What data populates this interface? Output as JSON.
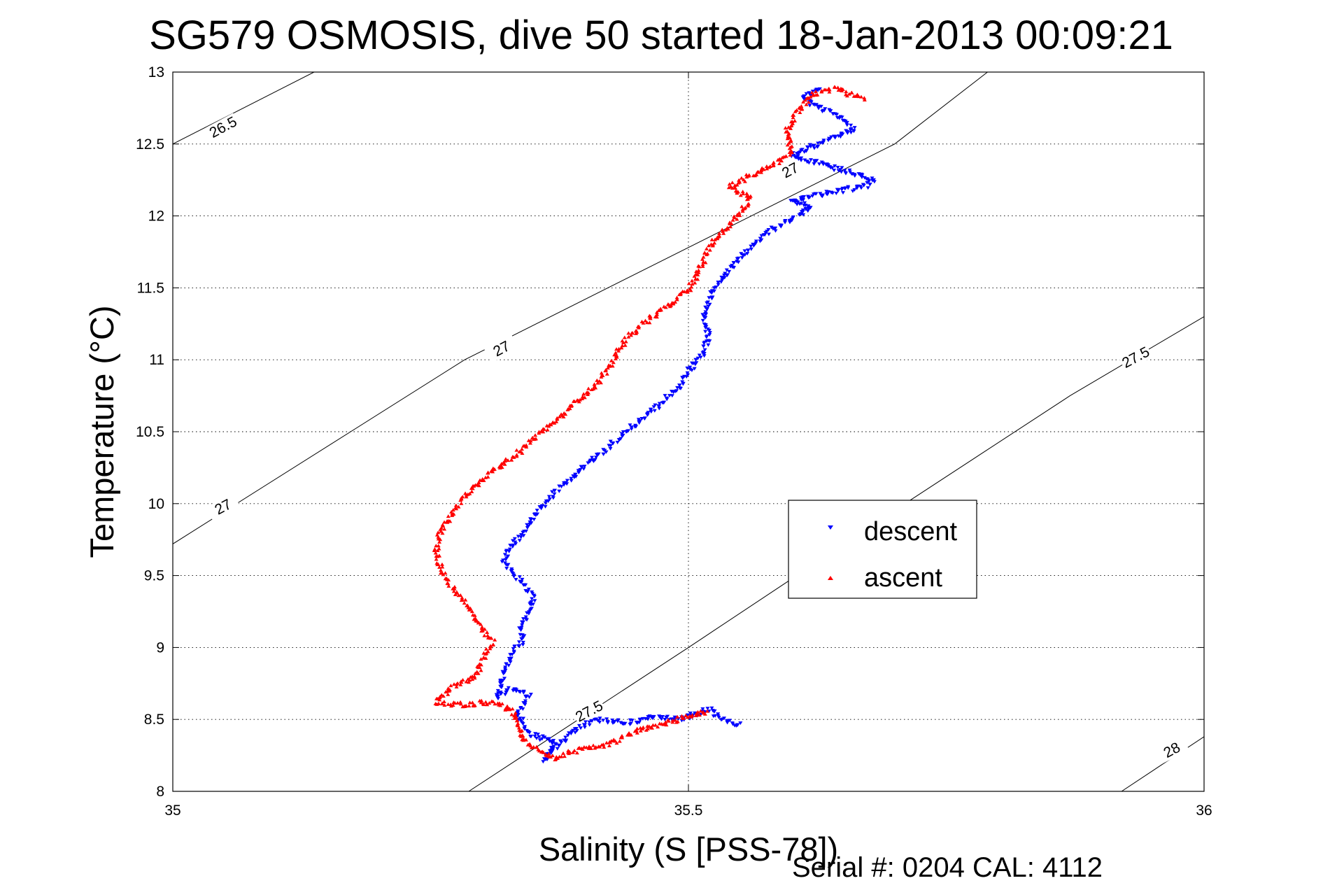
{
  "chart_data": {
    "type": "scatter",
    "title": "SG579 OSMOSIS, dive 50 started 18-Jan-2013 00:09:21",
    "xlabel": "Salinity (S [PSS-78])",
    "ylabel": "Temperature (°C)",
    "xlim": [
      35,
      36
    ],
    "ylim": [
      8,
      13
    ],
    "x_ticks": [
      "35",
      "35.5",
      "36"
    ],
    "y_ticks": [
      "8",
      "8.5",
      "9",
      "9.5",
      "10",
      "10.5",
      "11",
      "11.5",
      "12",
      "12.5",
      "13"
    ],
    "grid": true,
    "legend_position": "center-right",
    "footer": "Serial #: 0204  CAL: 4112",
    "density_contours": [
      {
        "label": "26.5",
        "points": [
          [
            35.0,
            12.5
          ],
          [
            35.137,
            13.0
          ]
        ]
      },
      {
        "label": "27",
        "points": [
          [
            35.0,
            9.72
          ],
          [
            35.283,
            11.0
          ],
          [
            35.561,
            12.0
          ],
          [
            35.7,
            12.5
          ],
          [
            35.79,
            13.0
          ]
        ]
      },
      {
        "label": "27.5",
        "points": [
          [
            35.287,
            8.0
          ],
          [
            35.5,
            9.0
          ],
          [
            35.71,
            10.0
          ],
          [
            35.87,
            10.75
          ],
          [
            36.0,
            11.3
          ]
        ]
      },
      {
        "label": "28",
        "points": [
          [
            35.92,
            8.0
          ],
          [
            36.0,
            8.38
          ]
        ]
      }
    ],
    "contour_labels": [
      {
        "label": "26.5",
        "s": 35.05,
        "t": 12.6
      },
      {
        "label": "27",
        "s": 35.32,
        "t": 11.06
      },
      {
        "label": "27",
        "s": 35.05,
        "t": 9.96
      },
      {
        "label": "27",
        "s": 35.6,
        "t": 12.3
      },
      {
        "label": "27.5",
        "s": 35.405,
        "t": 8.54
      },
      {
        "label": "27.5",
        "s": 35.935,
        "t": 11.0
      },
      {
        "label": "28",
        "s": 35.97,
        "t": 8.27
      }
    ],
    "series": [
      {
        "name": "descent",
        "color": "#0000ff",
        "marker": "triangle-down",
        "path": [
          [
            35.55,
            8.46
          ],
          [
            35.53,
            8.51
          ],
          [
            35.52,
            8.57
          ],
          [
            35.49,
            8.5
          ],
          [
            35.47,
            8.52
          ],
          [
            35.44,
            8.48
          ],
          [
            35.41,
            8.5
          ],
          [
            35.39,
            8.42
          ],
          [
            35.37,
            8.3
          ],
          [
            35.36,
            8.22
          ],
          [
            35.37,
            8.35
          ],
          [
            35.345,
            8.4
          ],
          [
            35.335,
            8.55
          ],
          [
            35.345,
            8.66
          ],
          [
            35.33,
            8.72
          ],
          [
            35.315,
            8.65
          ],
          [
            35.32,
            8.82
          ],
          [
            35.33,
            8.97
          ],
          [
            35.34,
            9.06
          ],
          [
            35.335,
            9.13
          ],
          [
            35.345,
            9.25
          ],
          [
            35.35,
            9.36
          ],
          [
            35.335,
            9.48
          ],
          [
            35.32,
            9.6
          ],
          [
            35.33,
            9.72
          ],
          [
            35.345,
            9.84
          ],
          [
            35.355,
            9.96
          ],
          [
            35.37,
            10.08
          ],
          [
            35.39,
            10.2
          ],
          [
            35.41,
            10.32
          ],
          [
            35.43,
            10.44
          ],
          [
            35.45,
            10.56
          ],
          [
            35.47,
            10.68
          ],
          [
            35.49,
            10.8
          ],
          [
            35.5,
            10.92
          ],
          [
            35.515,
            11.05
          ],
          [
            35.52,
            11.18
          ],
          [
            35.515,
            11.3
          ],
          [
            35.52,
            11.42
          ],
          [
            35.53,
            11.55
          ],
          [
            35.545,
            11.68
          ],
          [
            35.56,
            11.78
          ],
          [
            35.575,
            11.88
          ],
          [
            35.6,
            11.98
          ],
          [
            35.62,
            12.06
          ],
          [
            35.6,
            12.1
          ],
          [
            35.62,
            12.14
          ],
          [
            35.65,
            12.18
          ],
          [
            35.67,
            12.2
          ],
          [
            35.68,
            12.25
          ],
          [
            35.66,
            12.3
          ],
          [
            35.64,
            12.34
          ],
          [
            35.62,
            12.38
          ],
          [
            35.6,
            12.42
          ],
          [
            35.62,
            12.48
          ],
          [
            35.64,
            12.54
          ],
          [
            35.66,
            12.6
          ],
          [
            35.65,
            12.66
          ],
          [
            35.64,
            12.72
          ],
          [
            35.62,
            12.78
          ],
          [
            35.61,
            12.84
          ],
          [
            35.63,
            12.88
          ]
        ]
      },
      {
        "name": "ascent",
        "color": "#ff0000",
        "marker": "triangle-up",
        "path": [
          [
            35.67,
            12.82
          ],
          [
            35.64,
            12.88
          ],
          [
            35.62,
            12.84
          ],
          [
            35.605,
            12.72
          ],
          [
            35.595,
            12.58
          ],
          [
            35.6,
            12.44
          ],
          [
            35.585,
            12.36
          ],
          [
            35.56,
            12.28
          ],
          [
            35.54,
            12.2
          ],
          [
            35.56,
            12.12
          ],
          [
            35.55,
            12.02
          ],
          [
            35.535,
            11.9
          ],
          [
            35.52,
            11.78
          ],
          [
            35.51,
            11.62
          ],
          [
            35.5,
            11.48
          ],
          [
            35.48,
            11.38
          ],
          [
            35.46,
            11.27
          ],
          [
            35.44,
            11.15
          ],
          [
            35.43,
            11.03
          ],
          [
            35.42,
            10.92
          ],
          [
            35.41,
            10.82
          ],
          [
            35.39,
            10.7
          ],
          [
            35.37,
            10.57
          ],
          [
            35.35,
            10.45
          ],
          [
            35.33,
            10.32
          ],
          [
            35.305,
            10.2
          ],
          [
            35.285,
            10.06
          ],
          [
            35.27,
            9.92
          ],
          [
            35.26,
            9.8
          ],
          [
            35.255,
            9.68
          ],
          [
            35.26,
            9.55
          ],
          [
            35.27,
            9.42
          ],
          [
            35.285,
            9.3
          ],
          [
            35.295,
            9.17
          ],
          [
            35.31,
            9.04
          ],
          [
            35.3,
            8.92
          ],
          [
            35.295,
            8.8
          ],
          [
            35.27,
            8.72
          ],
          [
            35.255,
            8.62
          ],
          [
            35.28,
            8.6
          ],
          [
            35.31,
            8.62
          ],
          [
            35.33,
            8.56
          ],
          [
            35.335,
            8.46
          ],
          [
            35.34,
            8.36
          ],
          [
            35.35,
            8.3
          ],
          [
            35.37,
            8.23
          ],
          [
            35.39,
            8.28
          ],
          [
            35.42,
            8.32
          ],
          [
            35.45,
            8.42
          ],
          [
            35.48,
            8.48
          ],
          [
            35.5,
            8.52
          ],
          [
            35.52,
            8.56
          ]
        ]
      }
    ]
  }
}
